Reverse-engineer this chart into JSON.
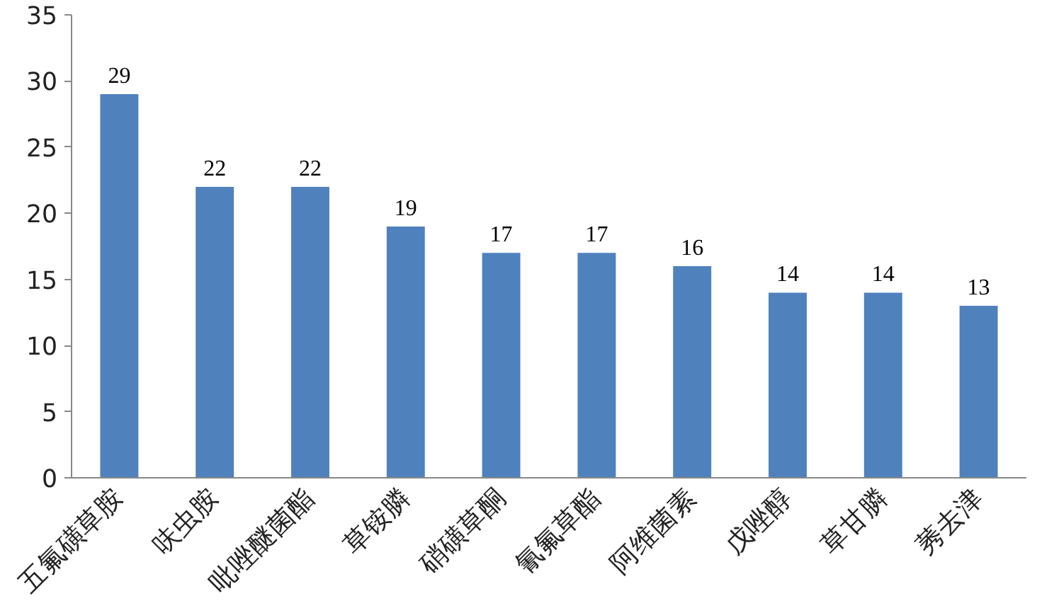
{
  "chart_data": {
    "type": "bar",
    "categories": [
      "五氟磺草胺",
      "呋虫胺",
      "吡唑醚菌酯",
      "草铵膦",
      "硝磺草酮",
      "氰氟草酯",
      "阿维菌素",
      "戊唑醇",
      "草甘膦",
      "莠去津"
    ],
    "values": [
      29,
      22,
      22,
      19,
      17,
      17,
      16,
      14,
      14,
      13
    ],
    "color": "#4f81bd",
    "ylim": [
      0,
      35
    ],
    "yticks": [
      0,
      5,
      10,
      15,
      20,
      25,
      30,
      35
    ],
    "grid": false,
    "data_labels": true
  }
}
